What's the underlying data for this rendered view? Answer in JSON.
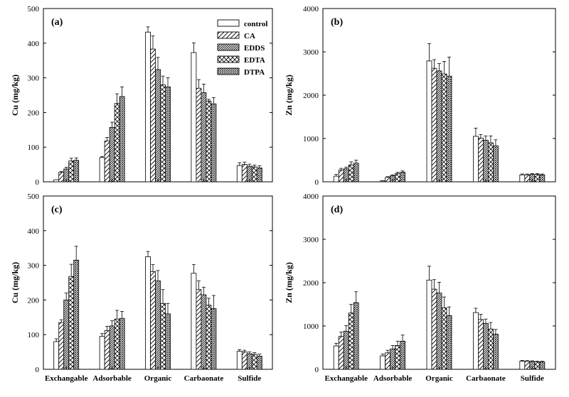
{
  "legend": {
    "entries": [
      "control",
      "CA",
      "EDDS",
      "EDTA",
      "DTPA"
    ],
    "patterns": [
      "blank",
      "diag",
      "dense-diag",
      "cross",
      "dots"
    ]
  },
  "chart_data": [
    {
      "type": "bar",
      "panel_label": "(a)",
      "ylabel": "Cu (mg/kg)",
      "xlabel": "",
      "ylim": [
        0,
        500
      ],
      "yticks": [
        0,
        100,
        200,
        300,
        400,
        500
      ],
      "categories": [
        "Exchangable",
        "Adsorbable",
        "Organic",
        "Carbaonate",
        "Sulfide"
      ],
      "show_category_labels": false,
      "grid": false,
      "legend_position": "top-right",
      "series": [
        {
          "name": "control",
          "values": [
            6,
            70,
            432,
            373,
            47
          ],
          "errors": [
            0,
            3,
            15,
            28,
            8
          ]
        },
        {
          "name": "CA",
          "values": [
            27,
            118,
            383,
            270,
            50
          ],
          "errors": [
            3,
            10,
            38,
            25,
            7
          ]
        },
        {
          "name": "EDDS",
          "values": [
            37,
            157,
            324,
            257,
            45
          ],
          "errors": [
            5,
            15,
            35,
            25,
            6
          ]
        },
        {
          "name": "EDTA",
          "values": [
            60,
            226,
            280,
            233,
            43
          ],
          "errors": [
            8,
            28,
            25,
            5,
            5
          ]
        },
        {
          "name": "DTPA",
          "values": [
            62,
            246,
            274,
            225,
            40
          ],
          "errors": [
            7,
            28,
            26,
            18,
            6
          ]
        }
      ]
    },
    {
      "type": "bar",
      "panel_label": "(b)",
      "ylabel": "Zn (mg/kg)",
      "xlabel": "",
      "ylim": [
        0,
        4000
      ],
      "yticks": [
        0,
        1000,
        2000,
        3000,
        4000
      ],
      "categories": [
        "Exchangable",
        "Adsorbable",
        "Organic",
        "Carbaonate",
        "Sulfide"
      ],
      "show_category_labels": false,
      "grid": false,
      "series": [
        {
          "name": "control",
          "values": [
            130,
            20,
            2790,
            1050,
            160
          ],
          "errors": [
            40,
            5,
            400,
            190,
            20
          ]
        },
        {
          "name": "CA",
          "values": [
            270,
            100,
            2620,
            1010,
            160
          ],
          "errors": [
            40,
            20,
            200,
            80,
            20
          ]
        },
        {
          "name": "EDDS",
          "values": [
            300,
            140,
            2560,
            960,
            170
          ],
          "errors": [
            40,
            20,
            170,
            100,
            20
          ]
        },
        {
          "name": "EDTA",
          "values": [
            390,
            190,
            2490,
            900,
            170
          ],
          "errors": [
            70,
            30,
            290,
            160,
            20
          ]
        },
        {
          "name": "DTPA",
          "values": [
            430,
            220,
            2440,
            830,
            160
          ],
          "errors": [
            70,
            30,
            440,
            140,
            20
          ]
        }
      ]
    },
    {
      "type": "bar",
      "panel_label": "(c)",
      "ylabel": "Cu (mg/kg)",
      "xlabel": "",
      "ylim": [
        0,
        500
      ],
      "yticks": [
        0,
        100,
        200,
        300,
        400,
        500
      ],
      "categories": [
        "Exchangable",
        "Adsorbable",
        "Organic",
        "Carbaonate",
        "Sulfide"
      ],
      "show_category_labels": true,
      "grid": false,
      "series": [
        {
          "name": "control",
          "values": [
            80,
            95,
            325,
            277,
            52
          ],
          "errors": [
            8,
            8,
            15,
            25,
            5
          ]
        },
        {
          "name": "CA",
          "values": [
            135,
            112,
            282,
            230,
            50
          ],
          "errors": [
            8,
            12,
            20,
            25,
            5
          ]
        },
        {
          "name": "EDDS",
          "values": [
            200,
            125,
            255,
            215,
            45
          ],
          "errors": [
            20,
            15,
            30,
            22,
            5
          ]
        },
        {
          "name": "EDTA",
          "values": [
            268,
            145,
            190,
            185,
            43
          ],
          "errors": [
            35,
            25,
            40,
            20,
            5
          ]
        },
        {
          "name": "DTPA",
          "values": [
            315,
            147,
            160,
            175,
            38
          ],
          "errors": [
            40,
            20,
            30,
            38,
            6
          ]
        }
      ]
    },
    {
      "type": "bar",
      "panel_label": "(d)",
      "ylabel": "Zn (mg/kg)",
      "xlabel": "",
      "ylim": [
        0,
        4000
      ],
      "yticks": [
        0,
        1000,
        2000,
        3000,
        4000
      ],
      "categories": [
        "Exchangable",
        "Adsorbable",
        "Organic",
        "Carbaonate",
        "Sulfide"
      ],
      "show_category_labels": true,
      "grid": false,
      "series": [
        {
          "name": "control",
          "values": [
            540,
            310,
            2060,
            1310,
            190
          ],
          "errors": [
            60,
            40,
            320,
            100,
            15
          ]
        },
        {
          "name": "CA",
          "values": [
            760,
            380,
            1850,
            1150,
            185
          ],
          "errors": [
            100,
            60,
            220,
            120,
            15
          ]
        },
        {
          "name": "EDDS",
          "values": [
            880,
            470,
            1760,
            1060,
            180
          ],
          "errors": [
            130,
            80,
            250,
            100,
            15
          ]
        },
        {
          "name": "EDTA",
          "values": [
            1300,
            550,
            1420,
            930,
            170
          ],
          "errors": [
            200,
            100,
            250,
            150,
            15
          ]
        },
        {
          "name": "DTPA",
          "values": [
            1540,
            650,
            1240,
            810,
            170
          ],
          "errors": [
            250,
            140,
            200,
            110,
            15
          ]
        }
      ]
    }
  ]
}
